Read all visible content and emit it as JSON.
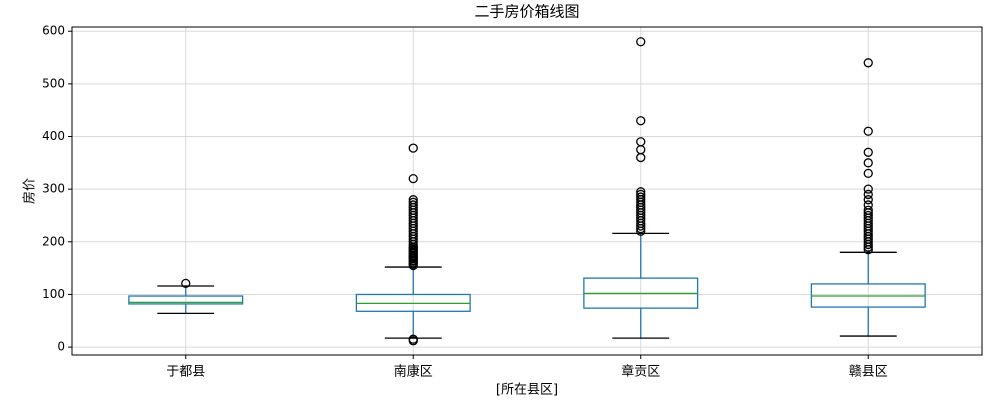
{
  "chart_data": {
    "type": "box",
    "title": "二手房价箱线图",
    "y_label": "房价",
    "x_label": "[所在县区]",
    "categories": [
      "于都县",
      "南康区",
      "章贡区",
      "赣县区"
    ],
    "boxes": [
      {
        "whislo": 64,
        "q1": 82,
        "med": 85,
        "q3": 97,
        "whishi": 116,
        "fliers": [
          121
        ]
      },
      {
        "whislo": 17,
        "q1": 68,
        "med": 83,
        "q3": 100,
        "whishi": 152,
        "fliers": [
          12,
          15,
          155,
          158,
          160,
          163,
          165,
          168,
          170,
          172,
          175,
          178,
          180,
          183,
          185,
          188,
          190,
          195,
          200,
          205,
          210,
          215,
          220,
          225,
          230,
          235,
          240,
          245,
          250,
          255,
          260,
          265,
          270,
          275,
          280,
          320,
          378
        ]
      },
      {
        "whislo": 17,
        "q1": 74,
        "med": 102,
        "q3": 131,
        "whishi": 216,
        "fliers": [
          220,
          225,
          230,
          235,
          240,
          245,
          250,
          255,
          260,
          265,
          270,
          275,
          280,
          285,
          290,
          295,
          360,
          375,
          390,
          430,
          580
        ]
      },
      {
        "whislo": 21,
        "q1": 76,
        "med": 97,
        "q3": 120,
        "whishi": 180,
        "fliers": [
          185,
          190,
          195,
          200,
          205,
          210,
          215,
          220,
          225,
          230,
          235,
          240,
          245,
          250,
          255,
          260,
          270,
          280,
          290,
          300,
          330,
          350,
          370,
          410,
          540
        ]
      }
    ],
    "box_color": "#1f77b4",
    "median_color": "#2ca02c",
    "cap_color": "#000000",
    "ylim": [
      -15,
      608
    ],
    "yticks": [
      0,
      100,
      200,
      300,
      400,
      500,
      600
    ],
    "grid": true
  }
}
